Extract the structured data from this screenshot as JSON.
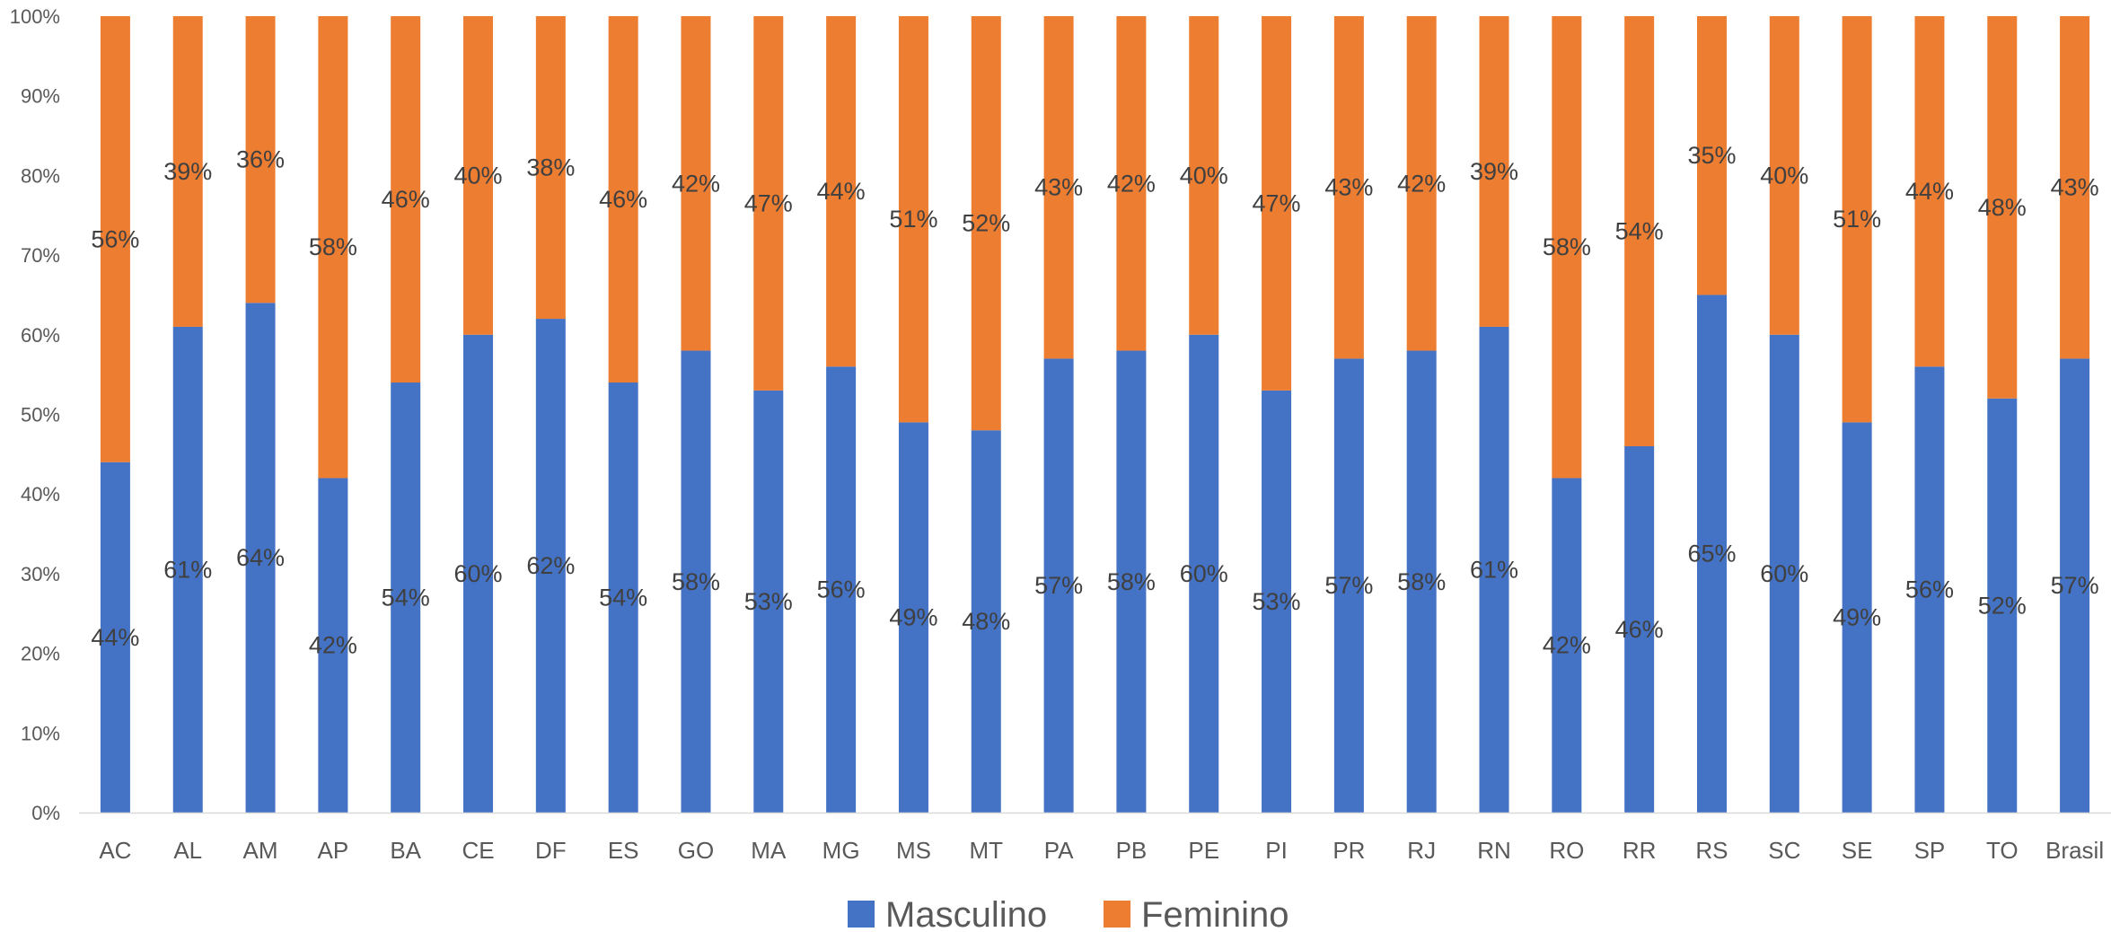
{
  "chart_data": {
    "type": "bar",
    "stacked": "percent",
    "categories": [
      "AC",
      "AL",
      "AM",
      "AP",
      "BA",
      "CE",
      "DF",
      "ES",
      "GO",
      "MA",
      "MG",
      "MS",
      "MT",
      "PA",
      "PB",
      "PE",
      "PI",
      "PR",
      "RJ",
      "RN",
      "RO",
      "RR",
      "RS",
      "SC",
      "SE",
      "SP",
      "TO",
      "Brasil"
    ],
    "series": [
      {
        "name": "Masculino",
        "color": "#4472C4",
        "values": [
          44,
          61,
          64,
          42,
          54,
          60,
          62,
          54,
          58,
          53,
          56,
          49,
          48,
          57,
          58,
          60,
          53,
          57,
          58,
          61,
          42,
          46,
          65,
          60,
          49,
          56,
          52,
          57
        ],
        "labels": [
          "44%",
          "61%",
          "64%",
          "42%",
          "54%",
          "60%",
          "62%",
          "54%",
          "58%",
          "53%",
          "56%",
          "49%",
          "48%",
          "57%",
          "58%",
          "60%",
          "53%",
          "57%",
          "58%",
          "61%",
          "42%",
          "46%",
          "65%",
          "60%",
          "49%",
          "56%",
          "52%",
          "57%"
        ]
      },
      {
        "name": "Feminino",
        "color": "#ED7D31",
        "values": [
          56,
          39,
          36,
          58,
          46,
          40,
          38,
          46,
          42,
          47,
          44,
          51,
          52,
          43,
          42,
          40,
          47,
          43,
          42,
          39,
          58,
          54,
          35,
          40,
          51,
          44,
          48,
          43
        ],
        "labels": [
          "56%",
          "39%",
          "36%",
          "58%",
          "46%",
          "40%",
          "38%",
          "46%",
          "42%",
          "47%",
          "44%",
          "51%",
          "52%",
          "43%",
          "42%",
          "40%",
          "47%",
          "43%",
          "42%",
          "39%",
          "58%",
          "54%",
          "35%",
          "40%",
          "51%",
          "44%",
          "48%",
          "43%"
        ]
      }
    ],
    "ylim": [
      0,
      100
    ],
    "yticks": [
      "0%",
      "10%",
      "20%",
      "30%",
      "40%",
      "50%",
      "60%",
      "70%",
      "80%",
      "90%",
      "100%"
    ],
    "grid": false,
    "legend": "bottom"
  }
}
